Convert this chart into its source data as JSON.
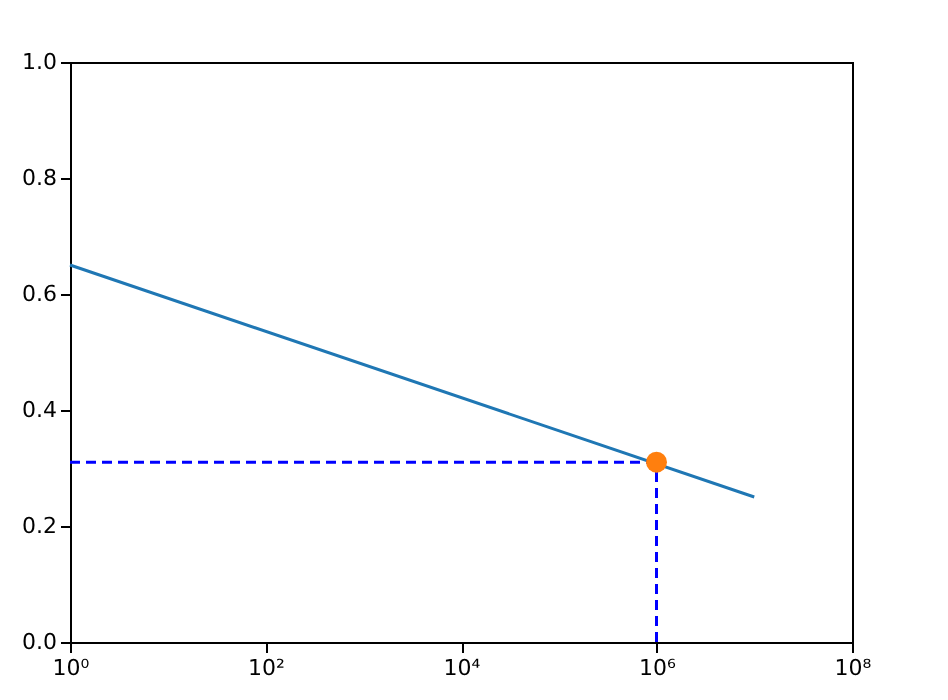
{
  "chart_data": {
    "type": "line",
    "log": "x",
    "grid": false,
    "xlim": [
      1,
      100000000
    ],
    "ylim": [
      0,
      1
    ],
    "xticks": [
      {
        "value": 1,
        "label": "10⁰"
      },
      {
        "value": 100,
        "label": "10²"
      },
      {
        "value": 10000,
        "label": "10⁴"
      },
      {
        "value": 1000000,
        "label": "10⁶"
      },
      {
        "value": 100000000,
        "label": "10⁸"
      }
    ],
    "yticks": [
      {
        "value": 0,
        "label": "0.0"
      },
      {
        "value": 0.2,
        "label": "0.2"
      },
      {
        "value": 0.4,
        "label": "0.4"
      },
      {
        "value": 0.6,
        "label": "0.6"
      },
      {
        "value": 0.8,
        "label": "0.8"
      },
      {
        "value": 1,
        "label": "1.0"
      }
    ],
    "series": [
      {
        "color": "#1f77b4",
        "x": [
          1,
          10000000
        ],
        "values": [
          0.65,
          0.25
        ],
        "line_style": "solid",
        "marker": "none"
      },
      {
        "color": "#0000ff",
        "x": [
          1,
          1000000
        ],
        "values": [
          0.31,
          0.31
        ],
        "line_style": "dashed",
        "marker": "none"
      },
      {
        "color": "#0000ff",
        "x": [
          1000000,
          1000000
        ],
        "values": [
          0,
          0.31
        ],
        "line_style": "dashed",
        "marker": "none"
      },
      {
        "type": "scatter",
        "color": "#ff7f0e",
        "x": [
          1000000
        ],
        "values": [
          0.31
        ],
        "marker": "circle"
      }
    ]
  }
}
